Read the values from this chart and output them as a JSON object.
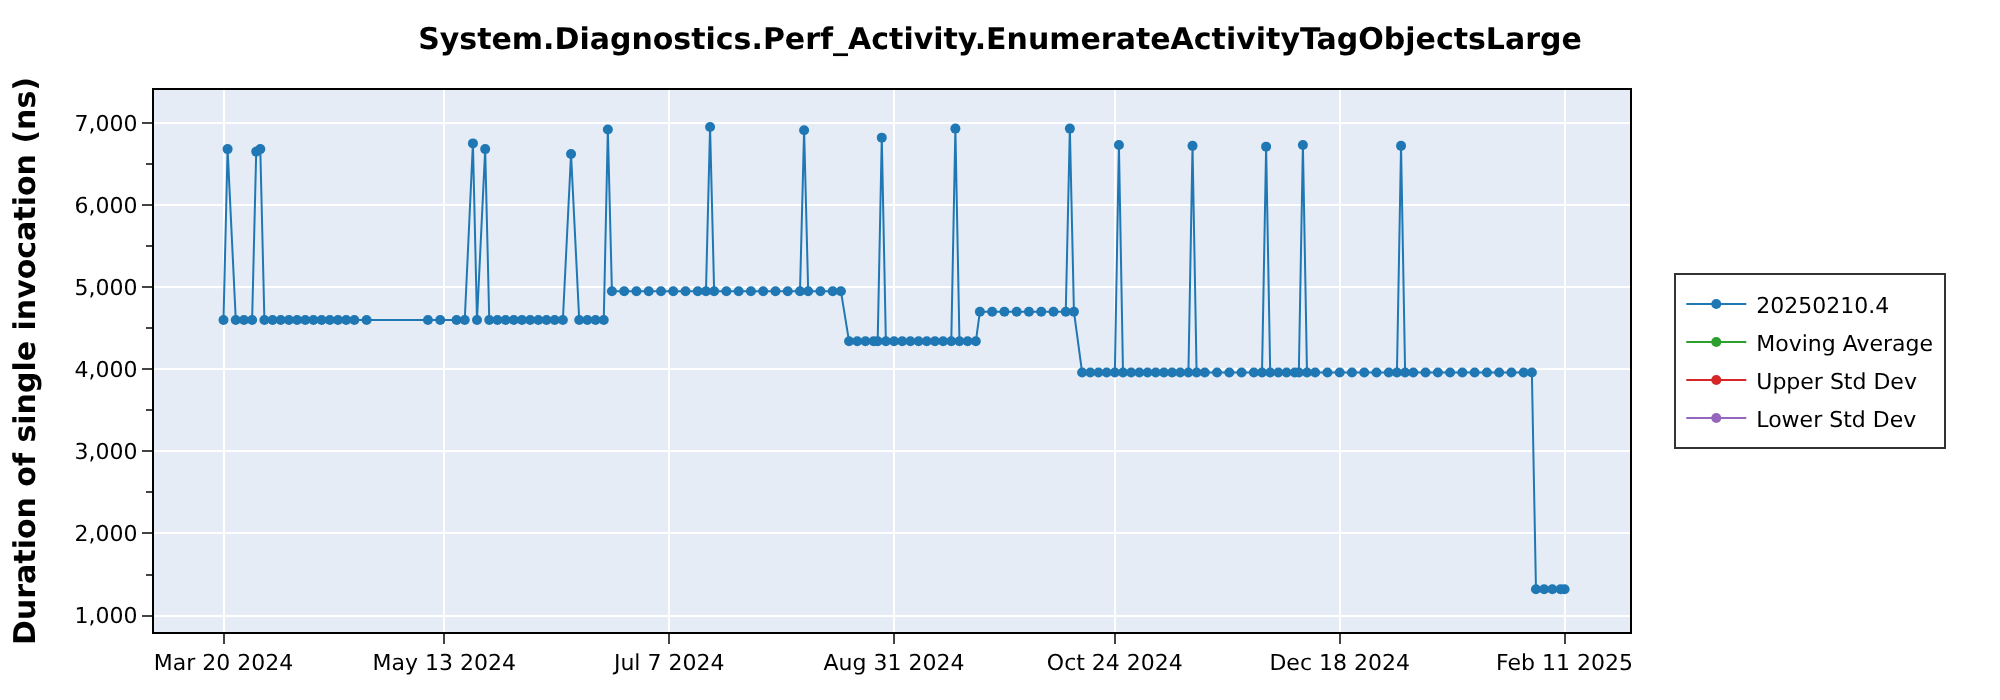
{
  "chart_data": {
    "type": "line",
    "title": "System.Diagnostics.Perf_Activity.EnumerateActivityTagObjectsLarge",
    "ylabel": "Duration of single invocation (ns)",
    "xlim": [
      "2024-03-03",
      "2025-02-27"
    ],
    "ylim": [
      800,
      7400
    ],
    "xticks": [
      {
        "value": "2024-03-20",
        "label": "Mar 20 2024"
      },
      {
        "value": "2024-05-13",
        "label": "May 13 2024"
      },
      {
        "value": "2024-07-07",
        "label": "Jul 7 2024"
      },
      {
        "value": "2024-08-31",
        "label": "Aug 31 2024"
      },
      {
        "value": "2024-10-24",
        "label": "Oct 24 2024"
      },
      {
        "value": "2024-12-18",
        "label": "Dec 18 2024"
      },
      {
        "value": "2025-02-11",
        "label": "Feb 11 2025"
      }
    ],
    "yticks": [
      {
        "value": 1000,
        "label": "1,000"
      },
      {
        "value": 2000,
        "label": "2,000"
      },
      {
        "value": 3000,
        "label": "3,000"
      },
      {
        "value": 4000,
        "label": "4,000"
      },
      {
        "value": 5000,
        "label": "5,000"
      },
      {
        "value": 6000,
        "label": "6,000"
      },
      {
        "value": 7000,
        "label": "7,000"
      }
    ],
    "grid": true,
    "legend": "right",
    "marker": "circle",
    "line_style": "solid",
    "series": [
      {
        "name": "20250210.4",
        "color": "#1f77b4",
        "x": [
          "2024-03-20",
          "2024-03-21",
          "2024-03-23",
          "2024-03-25",
          "2024-03-27",
          "2024-03-28",
          "2024-03-29",
          "2024-03-30",
          "2024-04-01",
          "2024-04-03",
          "2024-04-05",
          "2024-04-07",
          "2024-04-09",
          "2024-04-11",
          "2024-04-13",
          "2024-04-15",
          "2024-04-17",
          "2024-04-19",
          "2024-04-21",
          "2024-04-24",
          "2024-05-09",
          "2024-05-12",
          "2024-05-16",
          "2024-05-18",
          "2024-05-20",
          "2024-05-21",
          "2024-05-23",
          "2024-05-24",
          "2024-05-26",
          "2024-05-28",
          "2024-05-30",
          "2024-06-01",
          "2024-06-03",
          "2024-06-05",
          "2024-06-07",
          "2024-06-09",
          "2024-06-11",
          "2024-06-13",
          "2024-06-15",
          "2024-06-17",
          "2024-06-19",
          "2024-06-21",
          "2024-06-22",
          "2024-06-23",
          "2024-06-26",
          "2024-06-29",
          "2024-07-02",
          "2024-07-05",
          "2024-07-08",
          "2024-07-11",
          "2024-07-14",
          "2024-07-16",
          "2024-07-17",
          "2024-07-18",
          "2024-07-21",
          "2024-07-24",
          "2024-07-27",
          "2024-07-30",
          "2024-08-02",
          "2024-08-05",
          "2024-08-08",
          "2024-08-09",
          "2024-08-10",
          "2024-08-13",
          "2024-08-16",
          "2024-08-18",
          "2024-08-20",
          "2024-08-22",
          "2024-08-24",
          "2024-08-26",
          "2024-08-27",
          "2024-08-28",
          "2024-08-29",
          "2024-08-31",
          "2024-09-02",
          "2024-09-04",
          "2024-09-06",
          "2024-09-08",
          "2024-09-10",
          "2024-09-12",
          "2024-09-14",
          "2024-09-15",
          "2024-09-16",
          "2024-09-18",
          "2024-09-20",
          "2024-09-21",
          "2024-09-24",
          "2024-09-27",
          "2024-09-30",
          "2024-10-03",
          "2024-10-06",
          "2024-10-09",
          "2024-10-12",
          "2024-10-13",
          "2024-10-14",
          "2024-10-16",
          "2024-10-18",
          "2024-10-20",
          "2024-10-22",
          "2024-10-24",
          "2024-10-25",
          "2024-10-26",
          "2024-10-28",
          "2024-10-30",
          "2024-11-01",
          "2024-11-03",
          "2024-11-05",
          "2024-11-07",
          "2024-11-09",
          "2024-11-11",
          "2024-11-12",
          "2024-11-13",
          "2024-11-15",
          "2024-11-18",
          "2024-11-21",
          "2024-11-24",
          "2024-11-27",
          "2024-11-29",
          "2024-11-30",
          "2024-12-01",
          "2024-12-03",
          "2024-12-05",
          "2024-12-07",
          "2024-12-08",
          "2024-12-09",
          "2024-12-10",
          "2024-12-12",
          "2024-12-15",
          "2024-12-18",
          "2024-12-21",
          "2024-12-24",
          "2024-12-27",
          "2024-12-30",
          "2025-01-01",
          "2025-01-02",
          "2025-01-03",
          "2025-01-05",
          "2025-01-08",
          "2025-01-11",
          "2025-01-14",
          "2025-01-17",
          "2025-01-20",
          "2025-01-23",
          "2025-01-26",
          "2025-01-29",
          "2025-02-01",
          "2025-02-03",
          "2025-02-04",
          "2025-02-06",
          "2025-02-08",
          "2025-02-10",
          "2025-02-11"
        ],
        "values": [
          4600,
          6680,
          4600,
          4600,
          4600,
          6650,
          6680,
          4600,
          4600,
          4600,
          4600,
          4600,
          4600,
          4600,
          4600,
          4600,
          4600,
          4600,
          4600,
          4600,
          4600,
          4600,
          4600,
          4600,
          6750,
          4600,
          6680,
          4600,
          4600,
          4600,
          4600,
          4600,
          4600,
          4600,
          4600,
          4600,
          4600,
          6620,
          4600,
          4600,
          4600,
          4600,
          6920,
          4950,
          4950,
          4950,
          4950,
          4950,
          4950,
          4950,
          4950,
          4950,
          6950,
          4950,
          4950,
          4950,
          4950,
          4950,
          4950,
          4950,
          4950,
          6910,
          4950,
          4950,
          4950,
          4950,
          4340,
          4340,
          4340,
          4340,
          4340,
          6820,
          4340,
          4340,
          4340,
          4340,
          4340,
          4340,
          4340,
          4340,
          4340,
          6930,
          4340,
          4340,
          4340,
          4700,
          4700,
          4700,
          4700,
          4700,
          4700,
          4700,
          4700,
          6930,
          4700,
          3960,
          3960,
          3960,
          3960,
          3960,
          6730,
          3960,
          3960,
          3960,
          3960,
          3960,
          3960,
          3960,
          3960,
          3960,
          6720,
          3960,
          3960,
          3960,
          3960,
          3960,
          3960,
          3960,
          6710,
          3960,
          3960,
          3960,
          3960,
          3960,
          6730,
          3960,
          3960,
          3960,
          3960,
          3960,
          3960,
          3960,
          3960,
          3960,
          6720,
          3960,
          3960,
          3960,
          3960,
          3960,
          3960,
          3960,
          3960,
          3960,
          3960,
          3960,
          3960,
          1320,
          1320,
          1320,
          1320,
          1320
        ]
      },
      {
        "name": "Moving Average",
        "color": "#2ca02c"
      },
      {
        "name": "Upper Std Dev",
        "color": "#d62728"
      },
      {
        "name": "Lower Std Dev",
        "color": "#9467bd"
      }
    ]
  }
}
